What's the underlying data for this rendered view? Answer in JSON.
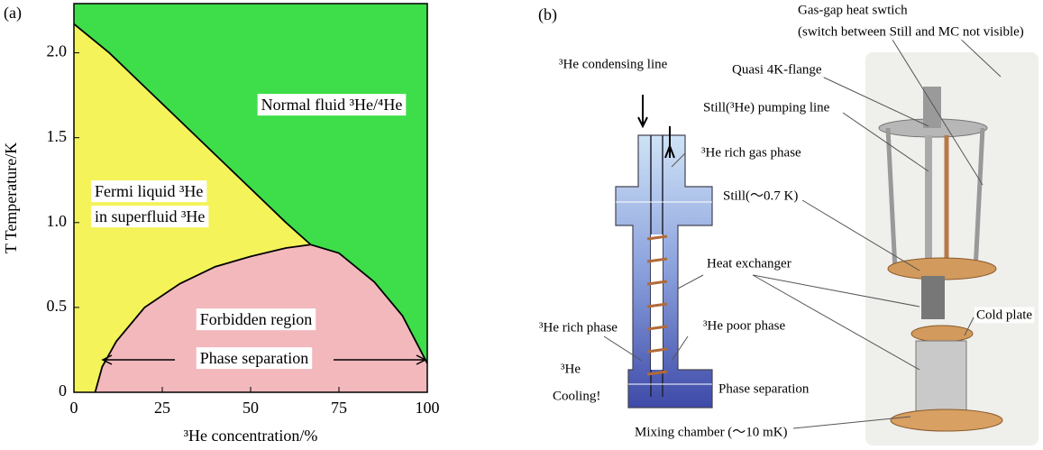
{
  "chart_data": {
    "type": "phase-diagram",
    "panel_label": "(a)",
    "x_label": "³He concentration/%",
    "y_label": "T Temperature/K",
    "xlim": [
      0,
      100
    ],
    "ylim": [
      0,
      2.29
    ],
    "xticks": [
      0,
      25,
      50,
      75,
      100
    ],
    "yticks": [
      0,
      0.5,
      {
        "value": 1,
        "label": "1.0"
      },
      1.5,
      {
        "value": 2,
        "label": "2.0"
      }
    ],
    "background_color": "#3ede4a",
    "superfluid_color": "#f4f35a",
    "separation_color": "#f2b8bc",
    "boundaries": [
      {
        "x": [
          0,
          10,
          20,
          30,
          40,
          50,
          60,
          67
        ],
        "values": [
          2.17,
          2.0,
          1.8,
          1.6,
          1.4,
          1.2,
          1.0,
          0.87
        ],
        "color": "#000000"
      },
      {
        "x": [
          6,
          8,
          12,
          20,
          30,
          40,
          50,
          60,
          67,
          75,
          85,
          93,
          98,
          100
        ],
        "values": [
          0,
          0.15,
          0.3,
          0.5,
          0.64,
          0.74,
          0.8,
          0.85,
          0.87,
          0.82,
          0.65,
          0.45,
          0.25,
          0.17
        ],
        "color": "#000000"
      }
    ],
    "annotations": [
      "Normal fluid ³He/⁴He",
      "Fermi liquid ³He",
      "in superfluid ³He",
      "Forbidden region",
      "Phase separation"
    ]
  },
  "diagram": {
    "panel_label": "(b)",
    "labels": [
      "³He condensing line",
      "Still(³He) pumping line",
      "³He rich gas phase",
      "Still(～0.7 K)",
      "Heat exchanger",
      "³He rich phase",
      "³He poor phase",
      "³He",
      "Cooling!",
      "Phase separation",
      "Mixing chamber (～10 mK)",
      "Gas-gap heat swtich",
      "(switch between Still and MC not visible)",
      "Quasi 4K-flange",
      "Cold plate"
    ]
  }
}
